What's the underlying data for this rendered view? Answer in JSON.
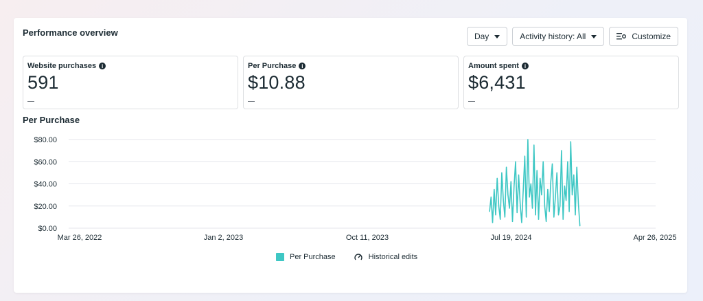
{
  "panel": {
    "title": "Performance overview",
    "toolbar": {
      "day_label": "Day",
      "activity_label": "Activity history: All",
      "customize_label": "Customize"
    }
  },
  "metrics": [
    {
      "label": "Website purchases",
      "value": "591",
      "change": "—"
    },
    {
      "label": "Per Purchase",
      "value": "$10.88",
      "change": "—"
    },
    {
      "label": "Amount spent",
      "value": "$6,431",
      "change": "—"
    }
  ],
  "chart_data": {
    "type": "line",
    "title": "Per Purchase",
    "ylim": [
      0,
      80
    ],
    "y_ticks": [
      "$0.00",
      "$20.00",
      "$40.00",
      "$60.00",
      "$80.00"
    ],
    "x_ticks": [
      "Mar 26, 2022",
      "Jan 2, 2023",
      "Oct 11, 2023",
      "Jul 19, 2024",
      "Apr 26, 2025"
    ],
    "grid": true,
    "legend_placement": "bottom-center",
    "series": [
      {
        "name": "Per Purchase",
        "color": "#3ec7c4",
        "x": [
          "2024-06-06",
          "2024-06-09",
          "2024-06-12",
          "2024-06-15",
          "2024-06-18",
          "2024-06-21",
          "2024-06-24",
          "2024-06-27",
          "2024-06-30",
          "2024-07-03",
          "2024-07-06",
          "2024-07-09",
          "2024-07-12",
          "2024-07-15",
          "2024-07-18",
          "2024-07-21",
          "2024-07-24",
          "2024-07-27",
          "2024-07-30",
          "2024-08-02",
          "2024-08-05",
          "2024-08-08",
          "2024-08-11",
          "2024-08-14",
          "2024-08-17",
          "2024-08-20",
          "2024-08-23",
          "2024-08-26",
          "2024-08-29",
          "2024-09-01",
          "2024-09-04",
          "2024-09-07",
          "2024-09-10",
          "2024-09-13",
          "2024-09-16",
          "2024-09-19",
          "2024-09-22",
          "2024-09-25",
          "2024-09-28",
          "2024-10-01",
          "2024-10-04",
          "2024-10-07",
          "2024-10-10",
          "2024-10-13",
          "2024-10-16",
          "2024-10-19",
          "2024-10-22",
          "2024-10-25",
          "2024-10-28",
          "2024-10-31",
          "2024-11-03",
          "2024-11-06",
          "2024-11-09",
          "2024-11-12",
          "2024-11-15",
          "2024-11-18",
          "2024-11-21",
          "2024-11-24",
          "2024-11-27",
          "2024-11-30"
        ],
        "values": [
          15,
          28,
          5,
          35,
          12,
          45,
          20,
          8,
          50,
          25,
          10,
          55,
          30,
          18,
          42,
          6,
          38,
          60,
          14,
          48,
          22,
          5,
          35,
          65,
          10,
          80,
          28,
          40,
          18,
          75,
          12,
          52,
          8,
          45,
          30,
          60,
          20,
          6,
          35,
          15,
          42,
          58,
          10,
          28,
          50,
          12,
          20,
          70,
          8,
          38,
          25,
          60,
          15,
          78,
          30,
          48,
          12,
          55,
          22,
          2
        ]
      }
    ],
    "legend": [
      {
        "label": "Per Purchase",
        "icon": "teal-square"
      },
      {
        "label": "Historical edits",
        "icon": "gauge-edit-icon"
      }
    ]
  }
}
